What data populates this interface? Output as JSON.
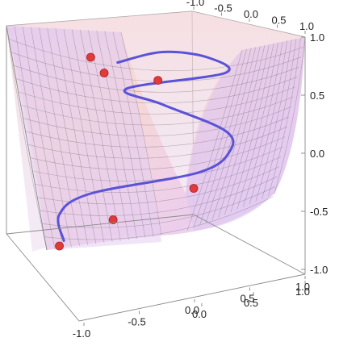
{
  "chart_data": {
    "type": "scatter",
    "title": "",
    "xlabel": "",
    "ylabel": "",
    "zlabel": "",
    "axes": {
      "top_ticks": [
        "-1.0",
        "-0.5",
        "0.0",
        "0.5",
        "1.0"
      ],
      "right_ticks": [
        "1.0",
        "0.5",
        "0.0",
        "-0.5",
        "-1.0"
      ],
      "bottom_right_ticks": [
        "1.0",
        "0.5",
        "0.0"
      ],
      "bottom_ticks": [
        "-1.0",
        "-0.5",
        "0.0",
        "0.5",
        "1.0"
      ],
      "xlim": [
        -1,
        1
      ],
      "ylim": [
        -1,
        1
      ],
      "zlim": [
        -1,
        1
      ]
    },
    "series": [
      {
        "kind": "curve",
        "color": "#5a52d8",
        "x": [
          -0.9,
          -0.95,
          -0.6,
          0.6,
          0.95,
          0.9,
          0.2,
          -0.2,
          0.9,
          0.7,
          0.2,
          -0.3
        ],
        "z": [
          -0.85,
          -0.6,
          -0.4,
          -0.2,
          0.0,
          0.2,
          0.45,
          0.6,
          0.75,
          0.9,
          0.95,
          0.85
        ]
      },
      {
        "kind": "points",
        "color": "#e03a3a",
        "points": [
          {
            "x": -0.6,
            "z": 0.9
          },
          {
            "x": -0.45,
            "z": 0.75
          },
          {
            "x": 0.15,
            "z": 0.68
          },
          {
            "x": 0.55,
            "z": -0.35
          },
          {
            "x": -0.35,
            "z": -0.65
          },
          {
            "x": -0.95,
            "z": -0.9
          }
        ]
      }
    ],
    "surface": {
      "name": "",
      "colors": [
        "#e8c4e8",
        "#f6d4cc",
        "#dcc8f0"
      ],
      "opacity": 0.7
    },
    "grid": false,
    "box": true
  }
}
